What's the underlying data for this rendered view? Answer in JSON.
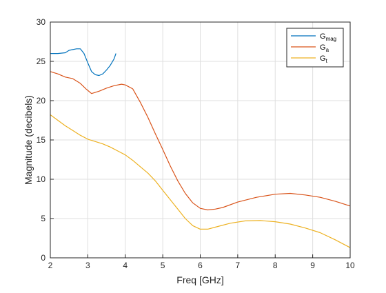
{
  "chart_data": {
    "type": "line",
    "xlabel": "Freq [GHz]",
    "ylabel": "Magnitude (decibels)",
    "xlim": [
      2,
      10
    ],
    "ylim": [
      0,
      30
    ],
    "xticks": [
      2,
      3,
      4,
      5,
      6,
      7,
      8,
      9,
      10
    ],
    "yticks": [
      0,
      5,
      10,
      15,
      20,
      25,
      30
    ],
    "grid": true,
    "legend_position": "top-right",
    "series": [
      {
        "name": "G",
        "name_sub": "mag",
        "color": "#0072BD",
        "x": [
          2.0,
          2.2,
          2.4,
          2.5,
          2.6,
          2.7,
          2.8,
          2.9,
          3.0,
          3.1,
          3.2,
          3.3,
          3.4,
          3.5,
          3.6,
          3.7,
          3.75
        ],
        "y": [
          26.0,
          26.0,
          26.1,
          26.4,
          26.5,
          26.6,
          26.6,
          26.0,
          24.8,
          23.7,
          23.3,
          23.2,
          23.4,
          23.9,
          24.5,
          25.3,
          26.0
        ]
      },
      {
        "name": "G",
        "name_sub": "a",
        "color": "#D95319",
        "x": [
          2.0,
          2.2,
          2.4,
          2.6,
          2.8,
          2.95,
          3.1,
          3.3,
          3.5,
          3.7,
          3.9,
          4.0,
          4.2,
          4.4,
          4.6,
          4.8,
          5.0,
          5.2,
          5.4,
          5.6,
          5.8,
          6.0,
          6.2,
          6.4,
          6.6,
          7.0,
          7.5,
          8.0,
          8.4,
          8.8,
          9.2,
          9.6,
          10.0
        ],
        "y": [
          23.7,
          23.4,
          23.0,
          22.8,
          22.2,
          21.5,
          20.9,
          21.2,
          21.6,
          21.9,
          22.1,
          22.0,
          21.5,
          19.8,
          17.9,
          15.8,
          13.8,
          11.7,
          9.8,
          8.2,
          7.0,
          6.3,
          6.1,
          6.2,
          6.4,
          7.1,
          7.7,
          8.1,
          8.2,
          8.0,
          7.7,
          7.2,
          6.6
        ]
      },
      {
        "name": "G",
        "name_sub": "t",
        "color": "#EDB120",
        "x": [
          2.0,
          2.2,
          2.4,
          2.6,
          2.8,
          3.0,
          3.2,
          3.4,
          3.6,
          3.8,
          4.0,
          4.2,
          4.4,
          4.6,
          4.8,
          5.0,
          5.2,
          5.4,
          5.6,
          5.8,
          6.0,
          6.2,
          6.4,
          6.8,
          7.2,
          7.6,
          8.0,
          8.4,
          8.8,
          9.2,
          9.6,
          10.0
        ],
        "y": [
          18.2,
          17.5,
          16.8,
          16.2,
          15.6,
          15.1,
          14.8,
          14.5,
          14.1,
          13.6,
          13.1,
          12.4,
          11.6,
          10.8,
          9.8,
          8.6,
          7.4,
          6.2,
          5.0,
          4.1,
          3.65,
          3.65,
          3.9,
          4.4,
          4.7,
          4.75,
          4.6,
          4.3,
          3.8,
          3.2,
          2.3,
          1.3
        ]
      }
    ]
  }
}
